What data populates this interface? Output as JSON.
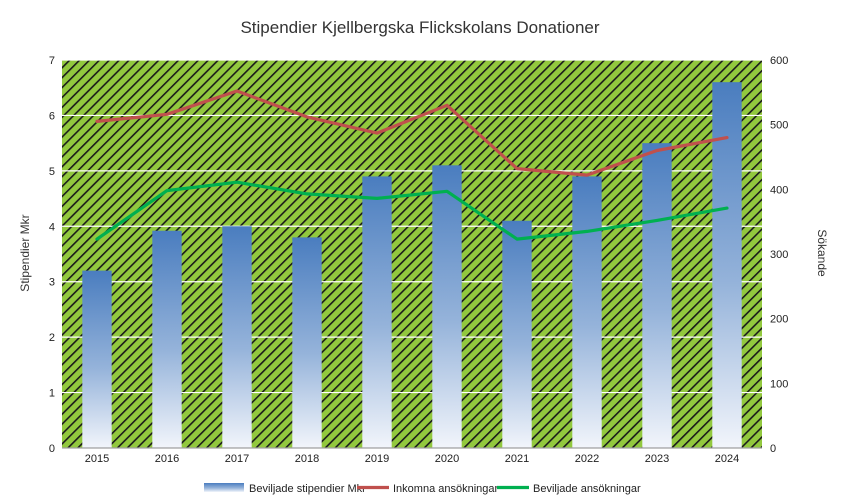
{
  "chart_data": {
    "type": "bar",
    "title": "Stipendier Kjellbergska Flickskolans Donationer",
    "categories": [
      "2015",
      "2016",
      "2017",
      "2018",
      "2019",
      "2020",
      "2021",
      "2022",
      "2023",
      "2024"
    ],
    "ylabel_left": "Stipendier Mkr",
    "ylabel_right": "Sökande",
    "ylim_left": [
      0,
      7
    ],
    "ylim_right": [
      0,
      600
    ],
    "yticks_left": [
      "0",
      "1",
      "2",
      "3",
      "4",
      "5",
      "6",
      "7"
    ],
    "yticks_right": [
      "0",
      "100",
      "200",
      "300",
      "400",
      "500",
      "600"
    ],
    "grid": true,
    "legend_position": "bottom",
    "series": [
      {
        "name": "Beviljade stipendier Mkr",
        "type": "bar",
        "axis": "left",
        "color": "#4a7dbf",
        "values": [
          3.2,
          3.92,
          4.0,
          3.8,
          4.9,
          5.1,
          4.1,
          4.9,
          5.5,
          6.6
        ]
      },
      {
        "name": "Inkomna ansökningar",
        "type": "line",
        "axis": "right",
        "color": "#c0504d",
        "values": [
          505,
          516,
          552,
          512,
          487,
          530,
          432,
          422,
          460,
          480
        ]
      },
      {
        "name": "Beviljade ansökningar",
        "type": "line",
        "axis": "right",
        "color": "#00b050",
        "values": [
          323,
          398,
          411,
          393,
          386,
          397,
          323,
          335,
          352,
          371
        ]
      }
    ],
    "plot_background": {
      "base": "#92c83e",
      "hatch": "#1a1a1a"
    }
  }
}
